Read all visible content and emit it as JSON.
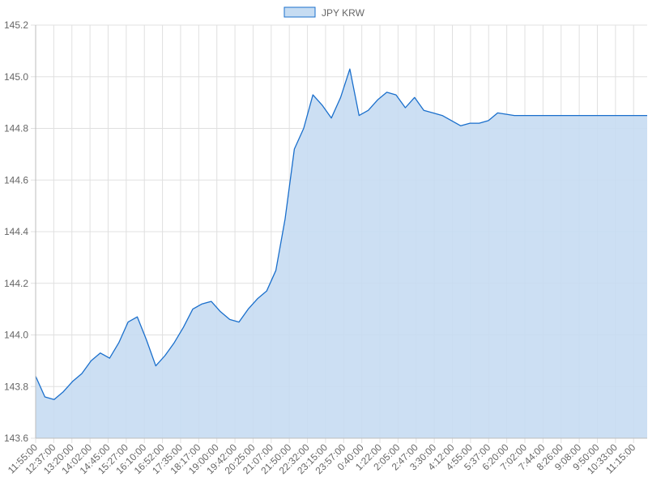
{
  "chart_data": {
    "type": "area",
    "title": "",
    "xlabel": "",
    "ylabel": "",
    "legend": {
      "position": "top-center",
      "entries": [
        "JPY KRW"
      ]
    },
    "grid": true,
    "ylim": [
      143.6,
      145.2
    ],
    "y_ticks": [
      "143.6",
      "143.8",
      "144.0",
      "144.2",
      "144.4",
      "144.6",
      "144.8",
      "145.0",
      "145.2"
    ],
    "x_ticks": [
      "11:55:00",
      "12:37:00",
      "13:20:00",
      "14:02:00",
      "14:45:00",
      "15:27:00",
      "16:10:00",
      "16:52:00",
      "17:35:00",
      "18:17:00",
      "19:00:00",
      "19:42:00",
      "20:25:00",
      "21:07:00",
      "21:50:00",
      "22:32:00",
      "23:15:00",
      "23:57:00",
      "0:40:00",
      "1:22:00",
      "2:05:00",
      "2:47:00",
      "3:30:00",
      "4:12:00",
      "4:55:00",
      "5:37:00",
      "6:20:00",
      "7:02:00",
      "7:44:00",
      "8:26:00",
      "9:08:00",
      "9:50:00",
      "10:33:00",
      "11:15:00"
    ],
    "colors": {
      "line": "#1a6fcc",
      "fill": "#c6dcf2",
      "grid": "#e0e0e0"
    },
    "series": [
      {
        "name": "JPY KRW",
        "x": [
          "11:55:00",
          "12:16:00",
          "12:37:00",
          "12:58:00",
          "13:20:00",
          "13:41:00",
          "14:02:00",
          "14:23:00",
          "14:45:00",
          "15:06:00",
          "15:27:00",
          "15:48:00",
          "16:10:00",
          "16:31:00",
          "16:52:00",
          "17:13:00",
          "17:35:00",
          "17:56:00",
          "18:17:00",
          "18:38:00",
          "19:00:00",
          "19:21:00",
          "19:42:00",
          "20:03:00",
          "20:25:00",
          "20:46:00",
          "21:07:00",
          "21:28:00",
          "21:50:00",
          "22:11:00",
          "22:32:00",
          "22:53:00",
          "23:15:00",
          "23:36:00",
          "23:57:00",
          "0:18:00",
          "0:40:00",
          "1:01:00",
          "1:22:00",
          "1:43:00",
          "2:05:00",
          "2:26:00",
          "2:47:00",
          "3:08:00",
          "3:30:00",
          "3:51:00",
          "4:12:00",
          "4:33:00",
          "4:55:00",
          "5:16:00",
          "5:37:00",
          "6:20:00",
          "7:02:00",
          "7:44:00",
          "8:26:00",
          "9:08:00",
          "9:50:00",
          "10:33:00",
          "11:15:00",
          "11:55:00"
        ],
        "values": [
          143.84,
          143.76,
          143.75,
          143.78,
          143.82,
          143.85,
          143.9,
          143.93,
          143.91,
          143.97,
          144.05,
          144.07,
          143.98,
          143.88,
          143.92,
          143.97,
          144.03,
          144.1,
          144.12,
          144.13,
          144.09,
          144.06,
          144.05,
          144.1,
          144.14,
          144.17,
          144.25,
          144.45,
          144.72,
          144.8,
          144.93,
          144.89,
          144.84,
          144.92,
          145.03,
          144.85,
          144.87,
          144.91,
          144.94,
          144.93,
          144.88,
          144.92,
          144.87,
          144.86,
          144.85,
          144.83,
          144.81,
          144.82,
          144.82,
          144.83,
          144.86,
          144.85,
          144.85,
          144.85,
          144.85,
          144.85,
          144.85,
          144.85,
          144.85,
          144.85
        ]
      }
    ]
  }
}
